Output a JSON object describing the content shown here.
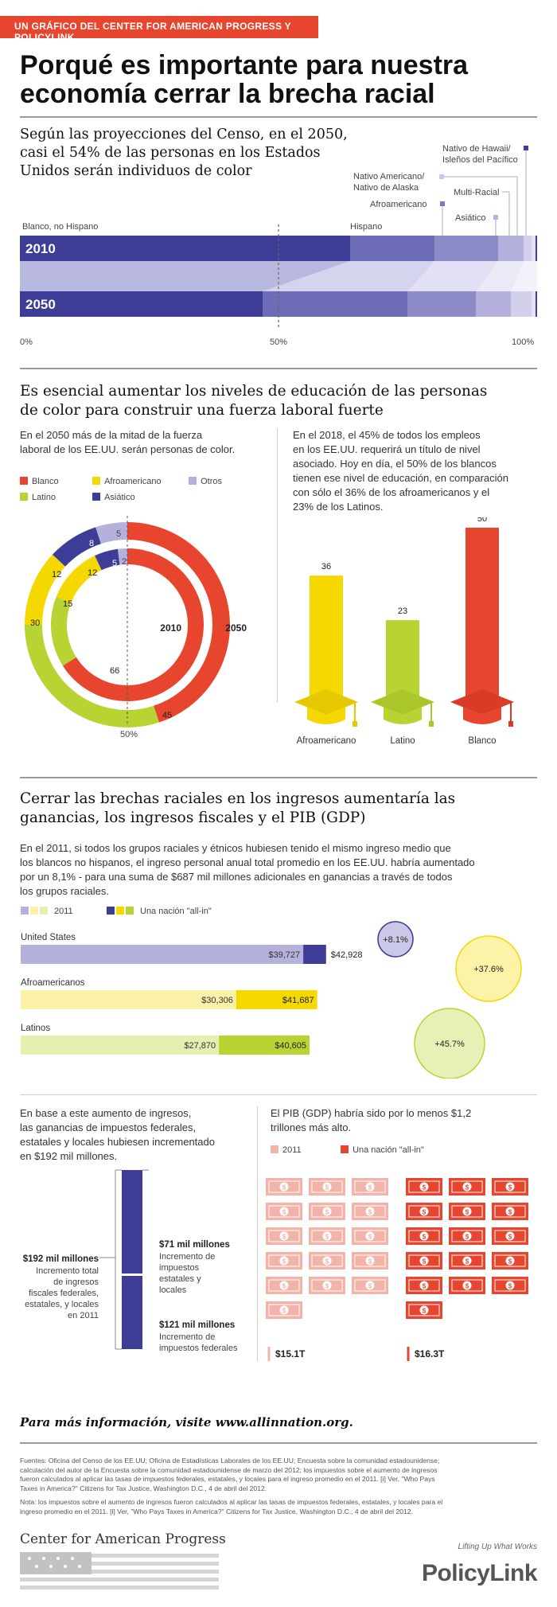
{
  "header": {
    "kicker": "UN GRÁFICO DEL CENTER FOR AMERICAN PROGRESS Y POLICYLINK",
    "title_line1": "Porqué es importante para nuestra",
    "title_line2": "economía cerrar la brecha racial"
  },
  "colors": {
    "red": "#e8452f",
    "navy": "#3d3d97",
    "yellow": "#f5d800",
    "green": "#b7d433",
    "lavender": "#b4b2dd",
    "gray_rule": "#9a9a9a"
  },
  "census": {
    "heading_line1": "Según las proyecciones del Censo, en el 2050,",
    "heading_line2": "casi el 54% de las personas en los Estados",
    "heading_line3": "Unidos serán individuos de color",
    "labels": {
      "white": "Blanco, no Hispano",
      "hispanic": "Hispano",
      "black": "Afroamericano",
      "asian": "Asiático",
      "native_line1": "Nativo Americano/",
      "native_line2": "Nativo de Alaska",
      "multi": "Multi-Racial",
      "hawaii_line1": "Nativo de Hawaii/",
      "hawaii_line2": "Isleños del Pacífico"
    },
    "year_2010": "2010",
    "year_2050": "2050",
    "axis_0": "0%",
    "axis_50": "50%",
    "axis_100": "100%"
  },
  "education": {
    "heading_line1": "Es esencial aumentar los niveles de educación de las personas",
    "heading_line2": "de color para construir una fuerza laboral fuerte",
    "left_text_line1": "En el 2050 más de la mitad de la fuerza",
    "left_text_line2": "laboral de los EE.UU. serán personas de color.",
    "legend": {
      "white": "Blanco",
      "black": "Afroamericano",
      "other": "Otros",
      "latino": "Latino",
      "asian": "Asiático"
    },
    "donut_labels": {
      "y2010": "2010",
      "y2050": "2050",
      "mid": "50%",
      "inner_white": "66",
      "inner_latino": "15",
      "inner_black": "12",
      "inner_asian": "5",
      "inner_other": "2",
      "outer_white": "45",
      "outer_latino": "30",
      "outer_black": "12",
      "outer_asian": "8",
      "outer_other": "5"
    },
    "right_text": [
      "En el 2018, el 45% de todos los empleos",
      "en los EE.UU. requerirá un título de nivel",
      "asociado. Hoy en día, el 50% de los blancos",
      "tienen ese nivel de educación, en comparación",
      "con sólo el 36% de los afroamericanos y el",
      "23% de los Latinos."
    ],
    "bar_labels": {
      "black_value": "36",
      "latino_value": "23",
      "white_value": "50",
      "black_name": "Afroamericano",
      "latino_name": "Latino",
      "white_name": "Blanco"
    }
  },
  "income": {
    "heading_line1": "Cerrar las brechas raciales en los ingresos aumentaría las",
    "heading_line2": "ganancias, los ingresos fiscales y el PIB (GDP)",
    "body_lines": [
      "En el 2011, si todos los grupos raciales y étnicos hubiesen tenido el mismo ingreso medio que",
      "los blancos no hispanos, el ingreso personal anual total promedio en los EE.UU. habría aumentado",
      "por un 8,1% - para una suma de $687 mil millones adicionales en ganancias a través de todos",
      "los grupos raciales."
    ],
    "legend_2011": "2011",
    "legend_allin": "Una nación \"all-in\"",
    "rows": [
      {
        "name": "United States",
        "base": "$39,727",
        "allin": "$42,928",
        "pct": "+8.1%"
      },
      {
        "name": "Afroamericanos",
        "base": "$30,306",
        "allin": "$41,687",
        "pct": "+37.6%"
      },
      {
        "name": "Latinos",
        "base": "$27,870",
        "allin": "$40,605",
        "pct": "+45.7%"
      }
    ]
  },
  "taxes": {
    "text_lines": [
      "En base a este aumento de ingresos,",
      "las ganancias de impuestos federales,",
      "estatales y locales hubiesen incrementado",
      "en $192 mil millones."
    ],
    "total_label": "$192 mil millones",
    "total_desc": [
      "Incremento total",
      "de ingresos",
      "fiscales federales,",
      "estatales, y locales",
      "en 2011"
    ],
    "state_label": "$71 mil millones",
    "state_desc": [
      "Incremento de",
      "impuestos",
      "estatales y",
      "locales"
    ],
    "federal_label": "$121 mil millones",
    "federal_desc": [
      "Incremento de",
      "impuestos federales"
    ]
  },
  "gdp": {
    "text_line1": "El PIB (GDP) habría sido por lo menos $1,2",
    "text_line2": "trillones más alto.",
    "legend_2011": "2011",
    "legend_allin": "Una nación \"all-in\"",
    "value_2011": "$15.1T",
    "value_allin": "$16.3T"
  },
  "footer": {
    "more_info": "Para más información, visite www.allinnation.org.",
    "sources": [
      "Fuentes: Oficina del Censo de los EE.UU; Oficina de Estadísticas Laborales de los EE.UU; Encuesta sobre la comunidad estadounidense;",
      "calculación del autor de la Encuesta sobre la comunidad estadounidense de marzo del 2012; los impuestos sobre el aumento de ingresos",
      "fueron calculados al aplicar las tasas de impuestos federales, estatales, y locales para el ingreso promedio en el 2011. [i] Ver, \"Who Pays",
      "Taxes in America?\" Citizens for Tax Justice, Washington D.C., 4 de abril del 2012."
    ],
    "note": [
      "Nota: los impuestos sobre el aumento de ingresos fueron calculados al aplicar las tasas de impuestos federales, estatales, y locales para el",
      "ingreso promedio en el 2011. [i] Ver, \"Who Pays Taxes in America?\" Citizens for Tax Justice, Washington D.C., 4 de abril del 2012."
    ],
    "cap_logo": "Center for American Progress",
    "pl_tagline": "Lifting Up What Works",
    "pl_logo": "PolicyLink"
  }
}
